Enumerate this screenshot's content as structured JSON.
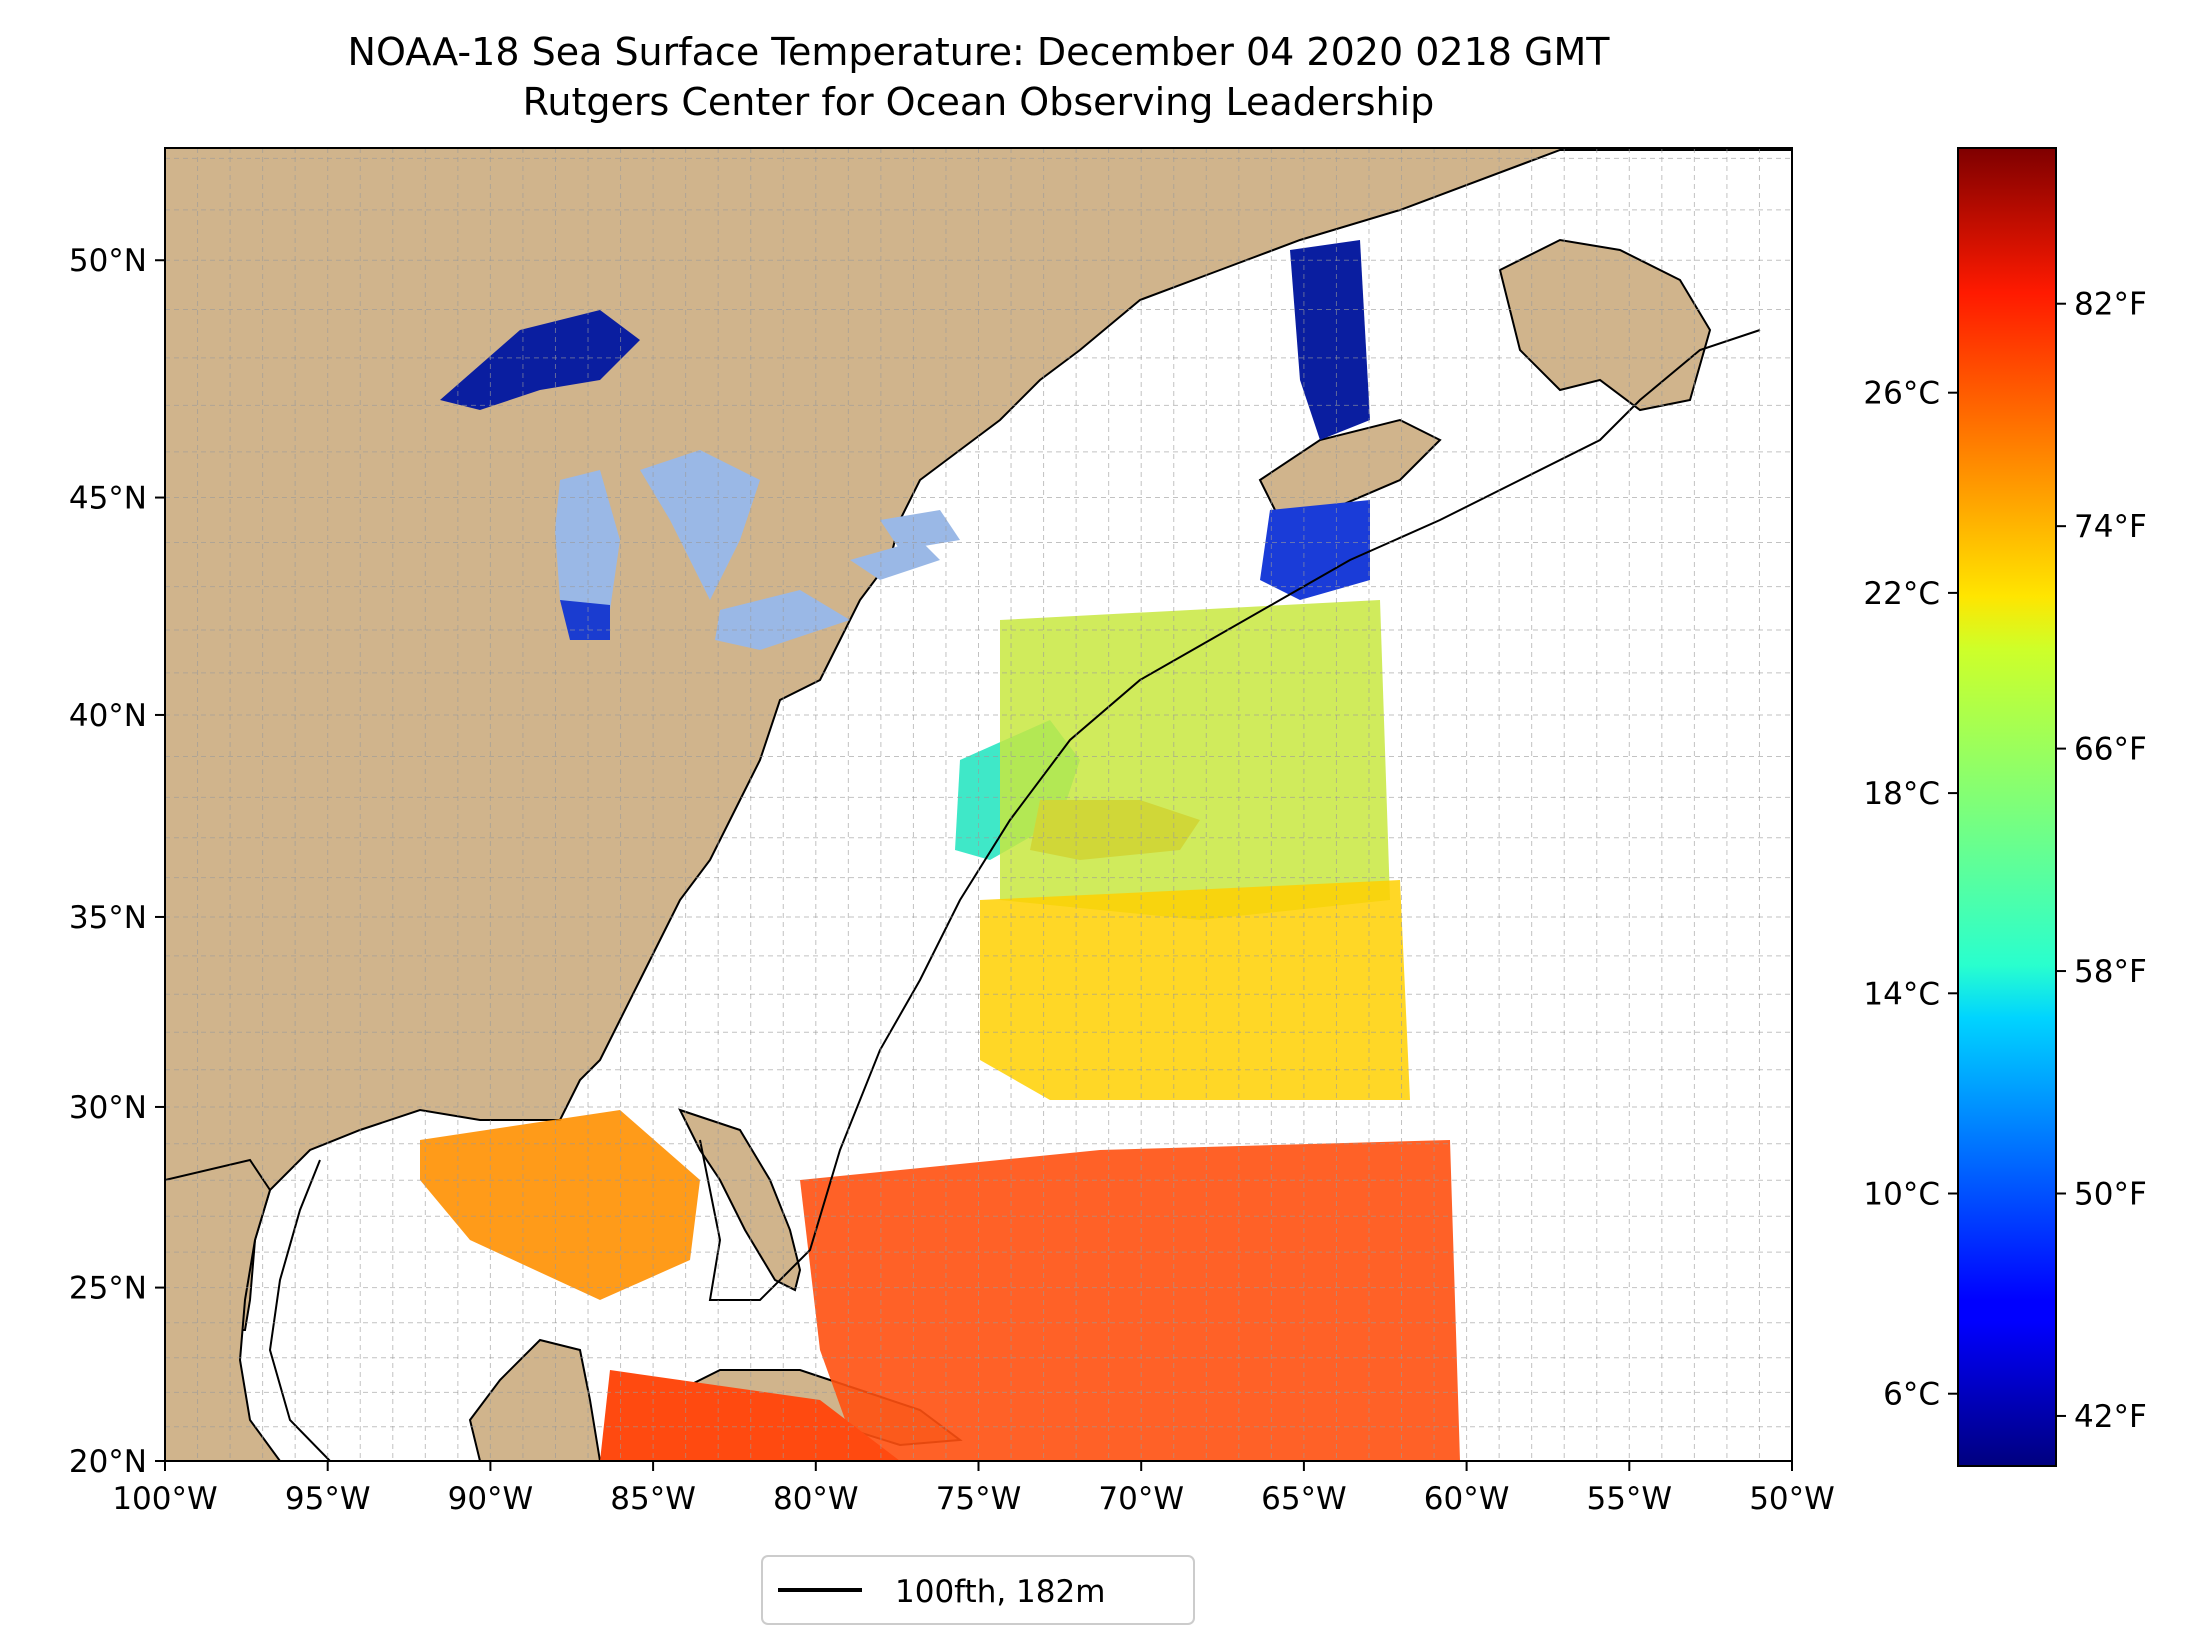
{
  "title": "NOAA-18 Sea Surface Temperature: December 04 2020 0218 GMT",
  "subtitle": "Rutgers Center for Ocean Observing Leadership",
  "map": {
    "lon_range": [
      -100,
      -50
    ],
    "lat_range": [
      20,
      52.2
    ],
    "lon_ticks": [
      "100°W",
      "95°W",
      "90°W",
      "85°W",
      "80°W",
      "75°W",
      "70°W",
      "65°W",
      "60°W",
      "55°W",
      "50°W"
    ],
    "lat_ticks": [
      "20°N",
      "25°N",
      "30°N",
      "35°N",
      "40°N",
      "45°N",
      "50°N"
    ],
    "gridlines": true,
    "land_color": "#d0b48c",
    "lake_color": "#9ab8e6",
    "no_data_color": "#ffffff"
  },
  "legend": {
    "label": "100fth, 182m",
    "placement": "bottom-center"
  },
  "colorbar": {
    "colormap": "jet",
    "celsius_ticks": [
      "6°C",
      "10°C",
      "14°C",
      "18°C",
      "22°C",
      "26°C"
    ],
    "fahrenheit_ticks": [
      "42°F",
      "50°F",
      "58°F",
      "66°F",
      "74°F",
      "82°F"
    ]
  }
}
